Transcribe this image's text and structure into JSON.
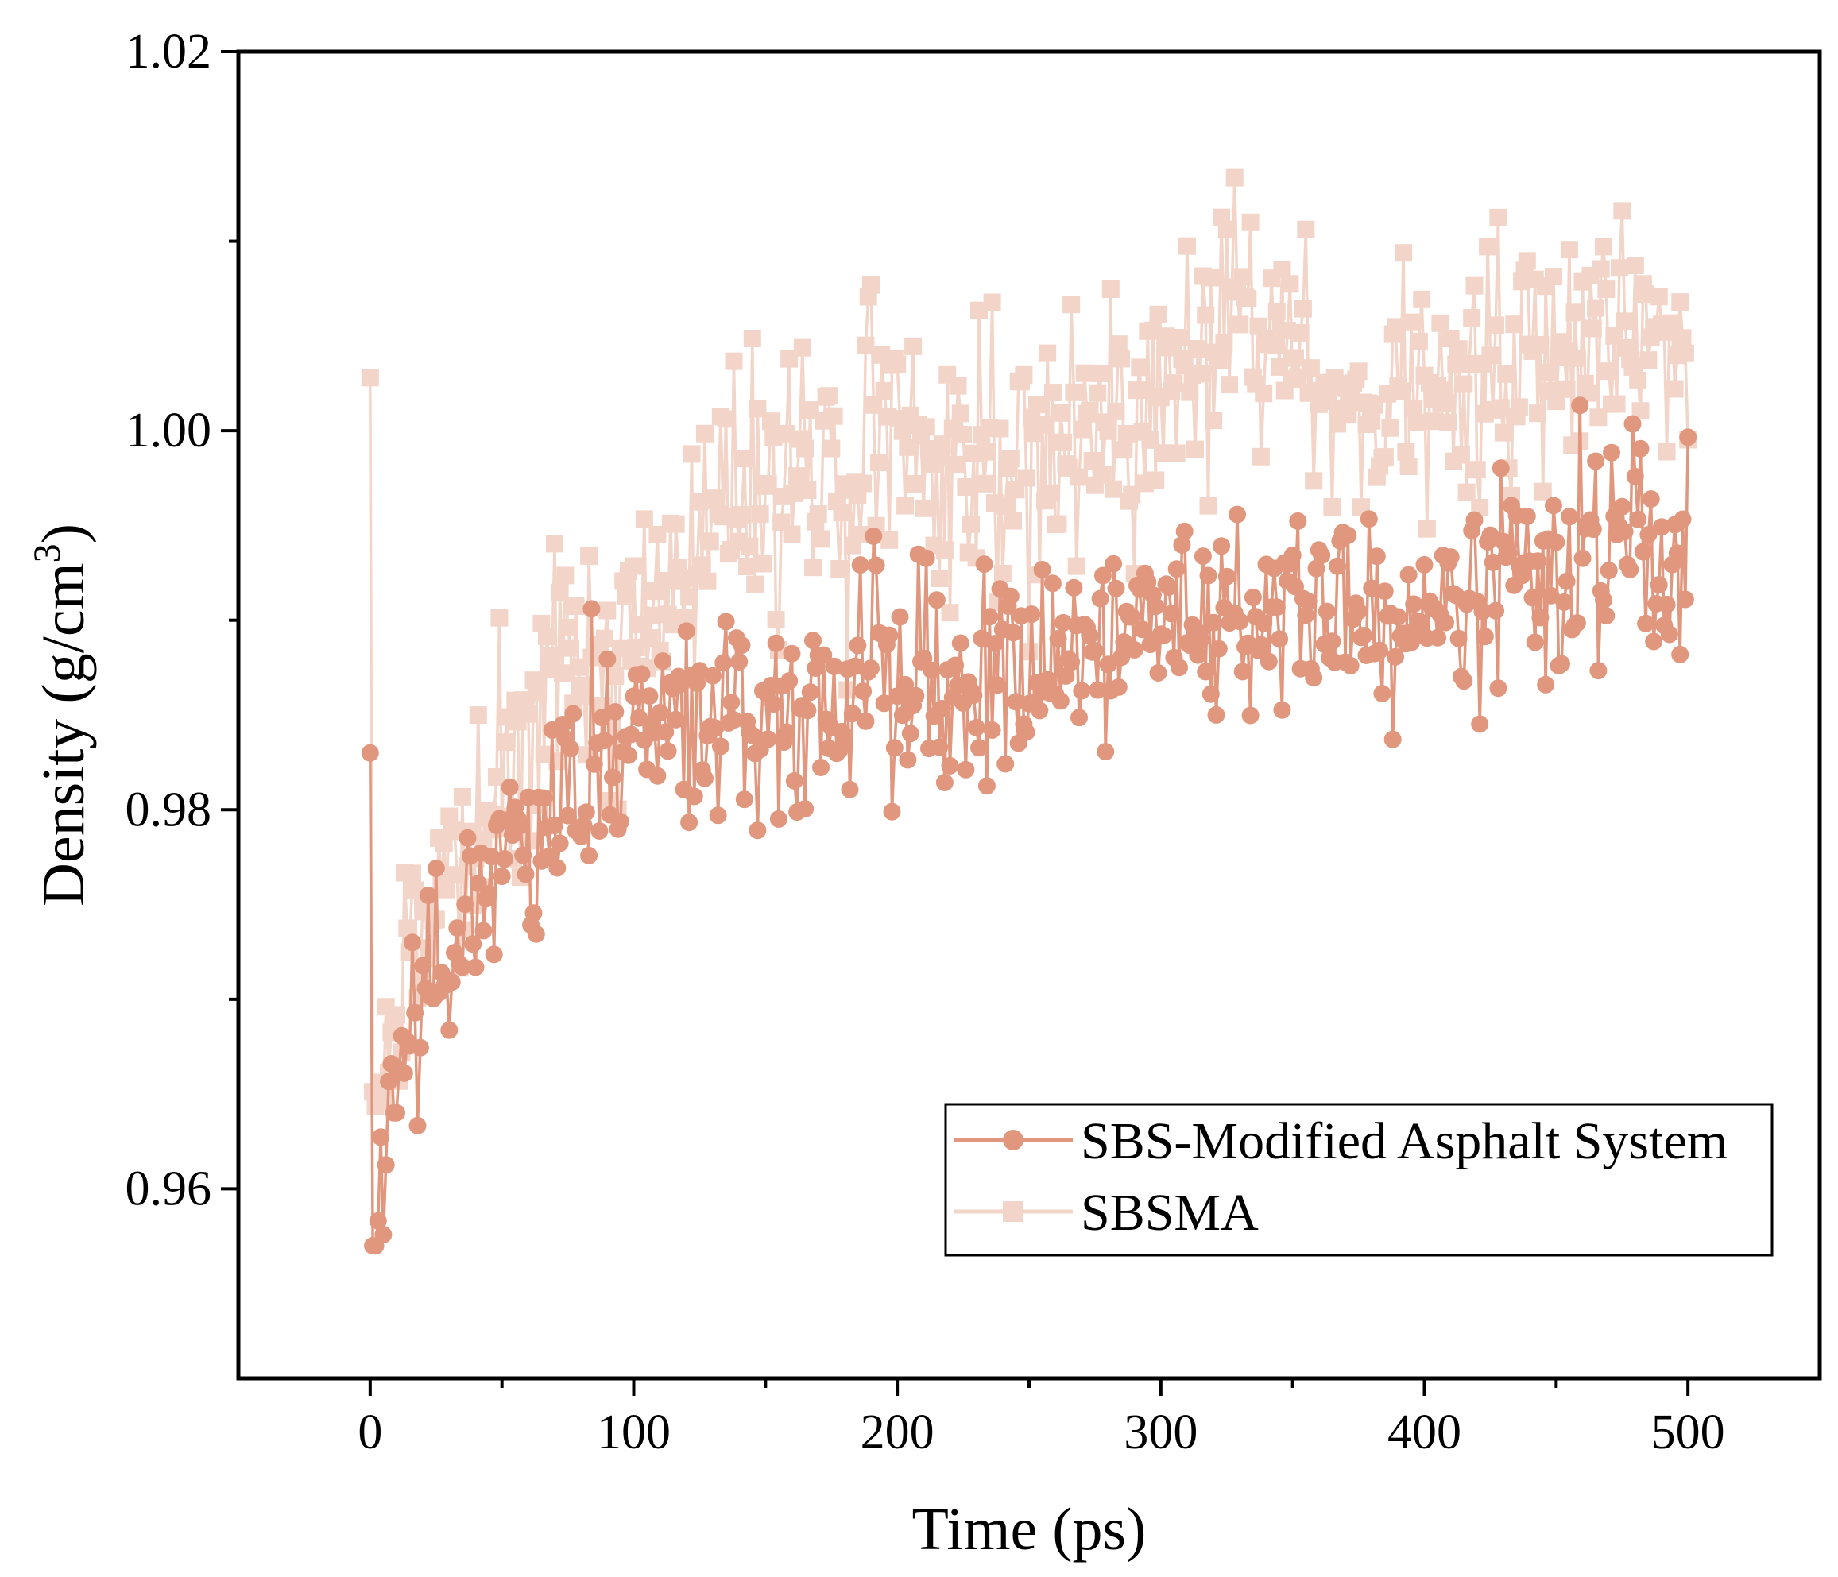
{
  "chart_data": {
    "type": "line",
    "title": "",
    "xlabel": "Time (ps)",
    "ylabel": "Density (g/cm",
    "ylabel_superscript": "3",
    "ylabel_close": ")",
    "xlim": [
      -50,
      550
    ],
    "ylim": [
      0.95,
      1.02
    ],
    "xticks": [
      0,
      100,
      200,
      300,
      400,
      500
    ],
    "xtick_labels": [
      "0",
      "100",
      "200",
      "300",
      "400",
      "500"
    ],
    "xminor": [
      50,
      150,
      250,
      350,
      450
    ],
    "yticks": [
      0.96,
      0.98,
      1.0,
      1.02
    ],
    "ytick_labels": [
      "0.96",
      "0.98",
      "1.00",
      "1.02"
    ],
    "yminor": [
      0.97,
      0.99,
      1.01
    ],
    "legend_position": "lower-right",
    "series": [
      {
        "name": "SBS-Modified Asphalt System",
        "color": "#E0977E",
        "marker": "circle",
        "trend": {
          "start_value": 0.983,
          "min_value": 0.9577,
          "min_time": 3,
          "plateau_points": [
            [
              20,
              0.971
            ],
            [
              50,
              0.9775
            ],
            [
              100,
              0.9845
            ],
            [
              150,
              0.9855
            ],
            [
              200,
              0.9865
            ],
            [
              250,
              0.9868
            ],
            [
              280,
              0.9885
            ],
            [
              300,
              0.9905
            ],
            [
              350,
              0.991
            ],
            [
              400,
              0.9905
            ],
            [
              450,
              0.9935
            ],
            [
              500,
              0.9935
            ]
          ],
          "noise": 0.0028,
          "n_points": 500
        }
      },
      {
        "name": "SBSMA",
        "color": "#F2D5C8",
        "marker": "square",
        "trend": {
          "start_value": 1.0028,
          "min_value": 0.9645,
          "min_time": 5,
          "plateau_points": [
            [
              20,
              0.9745
            ],
            [
              50,
              0.9815
            ],
            [
              80,
              0.9875
            ],
            [
              100,
              0.9885
            ],
            [
              150,
              0.9975
            ],
            [
              200,
              0.999
            ],
            [
              250,
              0.9975
            ],
            [
              280,
              1.0005
            ],
            [
              300,
              1.001
            ],
            [
              330,
              1.0075
            ],
            [
              350,
              1.0035
            ],
            [
              400,
              1.0015
            ],
            [
              450,
              1.0045
            ],
            [
              500,
              1.0035
            ]
          ],
          "noise": 0.0035,
          "n_points": 500
        }
      }
    ]
  }
}
